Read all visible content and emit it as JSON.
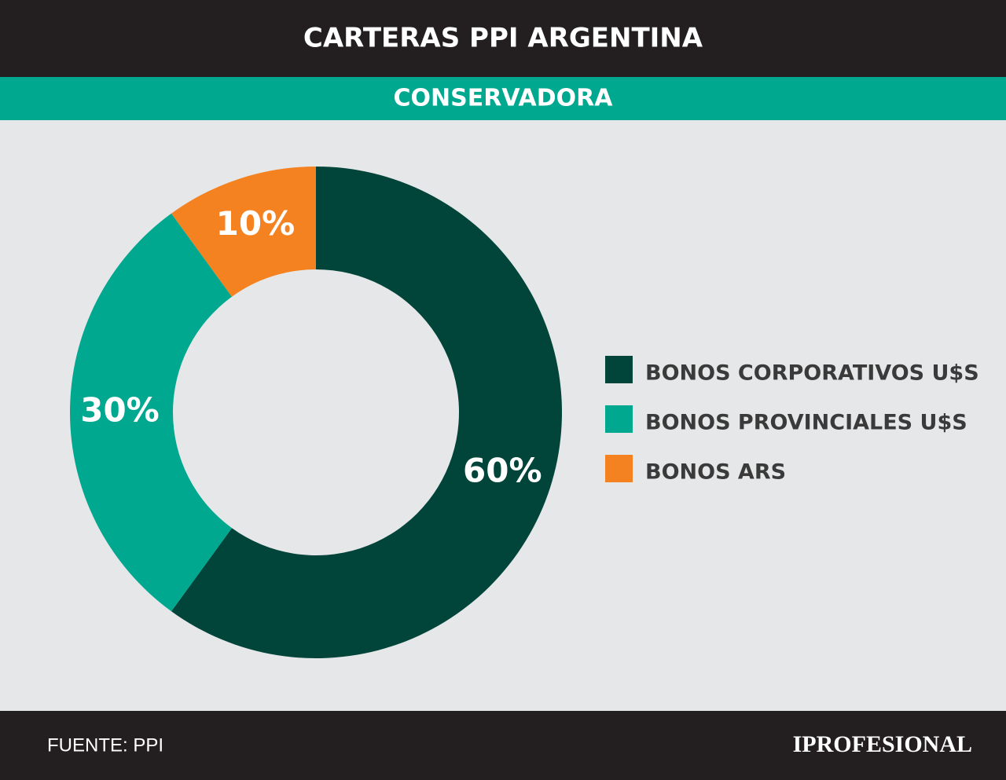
{
  "chart_data": {
    "type": "donut",
    "title": "CARTERAS PPI ARGENTINA",
    "subtitle": "CONSERVADORA",
    "categories": [
      "BONOS CORPORATIVOS U$S",
      "BONOS PROVINCIALES U$S",
      "BONOS ARS"
    ],
    "values": [
      60,
      30,
      10
    ],
    "value_labels": [
      "60%",
      "30%",
      "10%"
    ],
    "colors": [
      "#00443a",
      "#00a88f",
      "#f58220"
    ]
  },
  "footer": {
    "source": "FUENTE: PPI",
    "brand": "IPROFESIONAL"
  }
}
